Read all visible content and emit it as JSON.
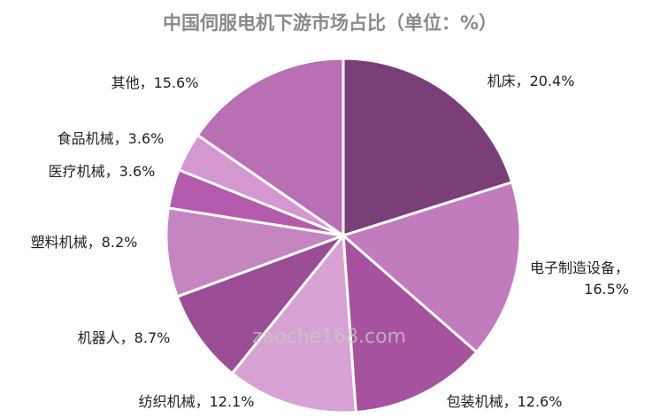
{
  "chart_data": {
    "type": "pie",
    "title": "中国伺服电机下游市场占比（单位：%）",
    "categories": [
      "机床",
      "电子制造设备",
      "包装机械",
      "纺织机械",
      "机器人",
      "塑料机械",
      "医疗机械",
      "食品机械",
      "其他"
    ],
    "values": [
      20.4,
      16.5,
      12.6,
      12.1,
      8.7,
      8.2,
      3.6,
      3.6,
      15.6
    ],
    "value_labels": [
      "机床，20.4%",
      "电子制造设备，16.5%",
      "包装机械，12.6%",
      "纺织机械，12.1%",
      "机器人，8.7%",
      "塑料机械，8.2%",
      "医疗机械，3.6%",
      "食品机械，3.6%",
      "其他，15.6%"
    ],
    "colors": [
      "#7b3f78",
      "#c27bbd",
      "#a6529f",
      "#d7a2d3",
      "#9b4d95",
      "#c585c0",
      "#b45bae",
      "#d597d0",
      "#b96fb4"
    ],
    "watermark": "zaoche168.com"
  }
}
